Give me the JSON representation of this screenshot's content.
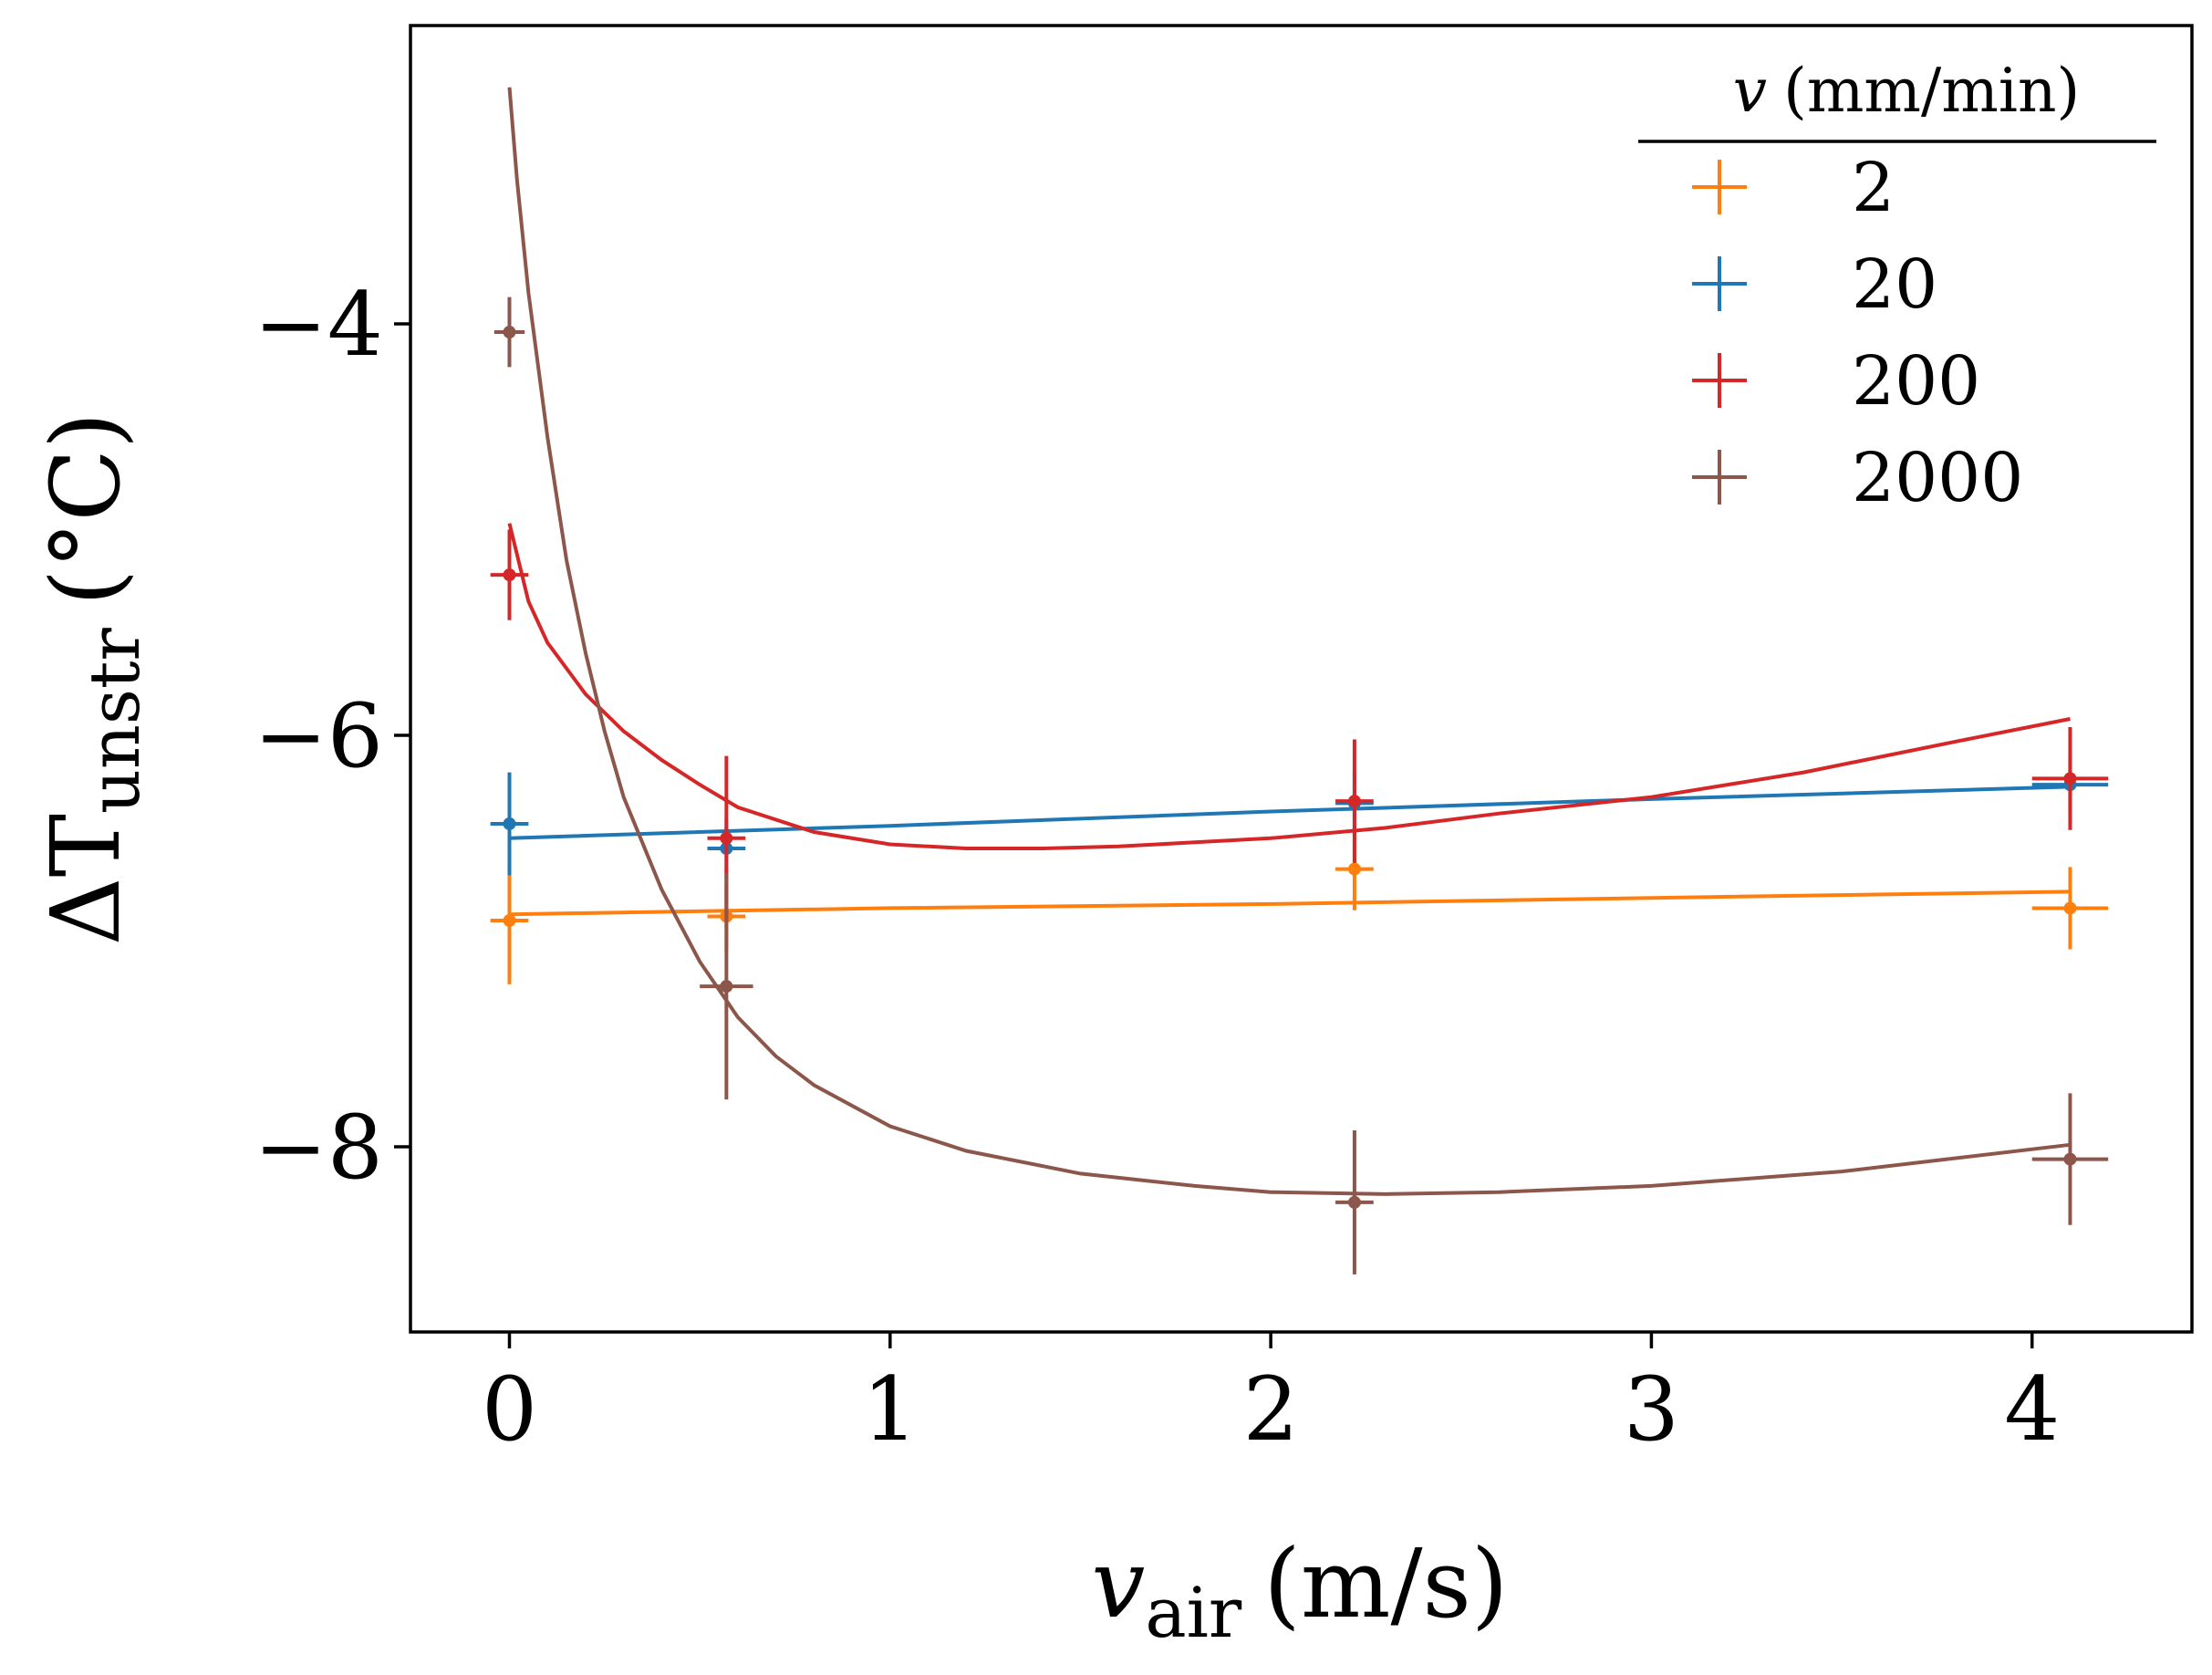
{
  "chart_data": {
    "type": "line",
    "title": "",
    "xlabel": {
      "main": "v",
      "sub": "air",
      "unit": "(m/s)"
    },
    "ylabel": {
      "main": "ΔT",
      "sub": "unstr",
      "unit": "(°C)"
    },
    "xlim": [
      -0.26,
      4.42
    ],
    "ylim": [
      -8.9,
      -2.55
    ],
    "xticks": [
      0,
      1,
      2,
      3,
      4
    ],
    "yticks": [
      -8,
      -6,
      -4
    ],
    "xtick_labels": [
      "0",
      "1",
      "2",
      "3",
      "4"
    ],
    "ytick_labels": [
      "−8",
      "−6",
      "−4"
    ],
    "grid": false,
    "legend": {
      "position": "top-right",
      "title_main": "v",
      "title_unit": "(mm/min)"
    },
    "series": [
      {
        "name": "2",
        "color": "#ff7f0e",
        "points": [
          {
            "x": 0.0,
            "y": -6.9,
            "xerr": 0.05,
            "yerr": 0.31
          },
          {
            "x": 0.57,
            "y": -6.88,
            "xerr": 0.05,
            "yerr": 0.17
          },
          {
            "x": 2.22,
            "y": -6.65,
            "xerr": 0.05,
            "yerr": 0.2
          },
          {
            "x": 4.1,
            "y": -6.84,
            "xerr": 0.1,
            "yerr": 0.2
          }
        ],
        "fit": [
          [
            0.0,
            -6.87
          ],
          [
            1.0,
            -6.84
          ],
          [
            2.0,
            -6.82
          ],
          [
            3.0,
            -6.79
          ],
          [
            4.1,
            -6.76
          ]
        ]
      },
      {
        "name": "20",
        "color": "#1f77b4",
        "points": [
          {
            "x": 0.0,
            "y": -6.43,
            "xerr": 0.05,
            "yerr": 0.25
          },
          {
            "x": 0.57,
            "y": -6.55,
            "xerr": 0.05,
            "yerr": 0.15
          },
          {
            "x": 2.22,
            "y": -6.33,
            "xerr": 0.05,
            "yerr": 0.15
          },
          {
            "x": 4.1,
            "y": -6.24,
            "xerr": 0.1,
            "yerr": 0.15
          }
        ],
        "fit": [
          [
            0.0,
            -6.5
          ],
          [
            1.0,
            -6.44
          ],
          [
            2.0,
            -6.37
          ],
          [
            3.0,
            -6.31
          ],
          [
            4.1,
            -6.25
          ]
        ]
      },
      {
        "name": "200",
        "color": "#d62728",
        "points": [
          {
            "x": 0.0,
            "y": -5.22,
            "xerr": 0.05,
            "yerr": 0.22
          },
          {
            "x": 0.57,
            "y": -6.5,
            "xerr": 0.05,
            "yerr": 0.4
          },
          {
            "x": 2.22,
            "y": -6.32,
            "xerr": 0.05,
            "yerr": 0.3
          },
          {
            "x": 4.1,
            "y": -6.21,
            "xerr": 0.1,
            "yerr": 0.25
          }
        ],
        "fit": [
          [
            0.0,
            -4.97
          ],
          [
            0.05,
            -5.35
          ],
          [
            0.1,
            -5.55
          ],
          [
            0.2,
            -5.8
          ],
          [
            0.3,
            -5.98
          ],
          [
            0.4,
            -6.12
          ],
          [
            0.5,
            -6.24
          ],
          [
            0.6,
            -6.35
          ],
          [
            0.8,
            -6.47
          ],
          [
            1.0,
            -6.53
          ],
          [
            1.2,
            -6.55
          ],
          [
            1.4,
            -6.55
          ],
          [
            1.6,
            -6.54
          ],
          [
            1.8,
            -6.52
          ],
          [
            2.0,
            -6.5
          ],
          [
            2.3,
            -6.45
          ],
          [
            2.6,
            -6.38
          ],
          [
            3.0,
            -6.3
          ],
          [
            3.4,
            -6.18
          ],
          [
            3.8,
            -6.03
          ],
          [
            4.1,
            -5.92
          ]
        ]
      },
      {
        "name": "2000",
        "color": "#8c564b",
        "points": [
          {
            "x": 0.0,
            "y": -4.04,
            "xerr": 0.04,
            "yerr": 0.17
          },
          {
            "x": 0.57,
            "y": -7.22,
            "xerr": 0.07,
            "yerr": 0.55
          },
          {
            "x": 2.22,
            "y": -8.27,
            "xerr": 0.05,
            "yerr": 0.35
          },
          {
            "x": 4.1,
            "y": -8.06,
            "xerr": 0.1,
            "yerr": 0.32
          }
        ],
        "fit": [
          [
            0.0,
            -2.85
          ],
          [
            0.02,
            -3.3
          ],
          [
            0.05,
            -3.85
          ],
          [
            0.1,
            -4.55
          ],
          [
            0.15,
            -5.15
          ],
          [
            0.2,
            -5.6
          ],
          [
            0.25,
            -5.98
          ],
          [
            0.3,
            -6.3
          ],
          [
            0.4,
            -6.75
          ],
          [
            0.5,
            -7.1
          ],
          [
            0.6,
            -7.37
          ],
          [
            0.7,
            -7.56
          ],
          [
            0.8,
            -7.7
          ],
          [
            1.0,
            -7.9
          ],
          [
            1.2,
            -8.02
          ],
          [
            1.5,
            -8.13
          ],
          [
            1.8,
            -8.19
          ],
          [
            2.0,
            -8.22
          ],
          [
            2.3,
            -8.23
          ],
          [
            2.6,
            -8.22
          ],
          [
            3.0,
            -8.19
          ],
          [
            3.5,
            -8.12
          ],
          [
            4.1,
            -7.99
          ]
        ]
      }
    ]
  }
}
